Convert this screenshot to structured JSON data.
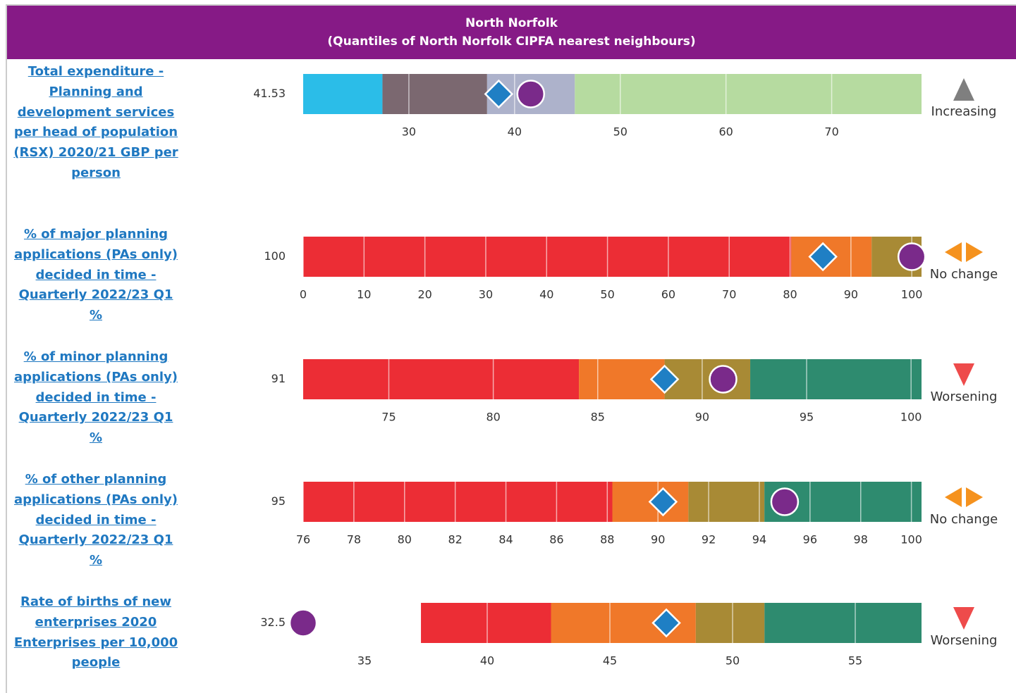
{
  "header": {
    "title": "North Norfolk",
    "subtitle": "(Quantiles of North Norfolk CIPFA nearest neighbours)"
  },
  "chart_data": [
    {
      "type": "bullet",
      "title": "Total expenditure - Planning and development services per head of population (RSX) 2020/21 GBP per person",
      "value": 41.53,
      "value_label": "41.53",
      "benchmark": 38.5,
      "xlim": [
        20,
        78.5
      ],
      "xticks": [
        30,
        40,
        50,
        60,
        70
      ],
      "bands": [
        {
          "from": 20,
          "to": 27.5,
          "color": "#2bbde8"
        },
        {
          "from": 27.5,
          "to": 37.4,
          "color": "#7b6870"
        },
        {
          "from": 37.4,
          "to": 45.7,
          "color": "#adb2cb"
        },
        {
          "from": 45.7,
          "to": 78.5,
          "color": "#b6dba0"
        }
      ],
      "trend": {
        "label": "Increasing",
        "direction": "up",
        "color": "#7f7f7f"
      }
    },
    {
      "type": "bullet",
      "title": "% of major planning applications (PAs only) decided in time - Quarterly 2022/23 Q1 %",
      "value": 100,
      "benchmark": 85.4,
      "xlim": [
        0,
        101.6
      ],
      "xticks": [
        0,
        10,
        20,
        30,
        40,
        50,
        60,
        70,
        80,
        90,
        100
      ],
      "bands": [
        {
          "from": 0,
          "to": 80.2,
          "color": "#ec2d35"
        },
        {
          "from": 80.2,
          "to": 93.4,
          "color": "#f07829"
        },
        {
          "from": 93.4,
          "to": 101.6,
          "color": "#a88a35"
        }
      ],
      "trend": {
        "label": "No change",
        "direction": "both",
        "color": "#f5921e"
      }
    },
    {
      "type": "bullet",
      "title": "% of minor planning applications (PAs only) decided in time - Quarterly 2022/23 Q1 %",
      "value": 91,
      "benchmark": 88.2,
      "xlim": [
        70.9,
        100.5
      ],
      "xticks": [
        75,
        80,
        85,
        90,
        95,
        100
      ],
      "bands": [
        {
          "from": 70.9,
          "to": 84.1,
          "color": "#ec2d35"
        },
        {
          "from": 84.1,
          "to": 88.2,
          "color": "#f07829"
        },
        {
          "from": 88.2,
          "to": 92.3,
          "color": "#a88a35"
        },
        {
          "from": 92.3,
          "to": 100.5,
          "color": "#2e8b6f"
        }
      ],
      "trend": {
        "label": "Worsening",
        "direction": "down",
        "color": "#ee4b4b"
      }
    },
    {
      "type": "bullet",
      "title": "% of other planning applications (PAs only) decided in time - Quarterly 2022/23 Q1 %",
      "value": 95,
      "benchmark": 90.2,
      "xlim": [
        76,
        100.4
      ],
      "xticks": [
        76,
        78,
        80,
        82,
        84,
        86,
        88,
        90,
        92,
        94,
        96,
        98,
        100
      ],
      "bands": [
        {
          "from": 76,
          "to": 88.2,
          "color": "#ec2d35"
        },
        {
          "from": 88.2,
          "to": 91.2,
          "color": "#f07829"
        },
        {
          "from": 91.2,
          "to": 94.2,
          "color": "#a88a35"
        },
        {
          "from": 94.2,
          "to": 100.4,
          "color": "#2e8b6f"
        }
      ],
      "trend": {
        "label": "No change",
        "direction": "both",
        "color": "#f5921e"
      }
    },
    {
      "type": "bullet",
      "title": "Rate of births of new enterprises 2020 Enterprises per 10,000 people",
      "value": 32.5,
      "benchmark": 47.3,
      "xlim": [
        32.5,
        57.7
      ],
      "xticks": [
        35,
        40,
        45,
        50,
        55
      ],
      "bands": [
        {
          "from": 37.3,
          "to": 42.6,
          "color": "#ec2d35"
        },
        {
          "from": 42.6,
          "to": 48.5,
          "color": "#f07829"
        },
        {
          "from": 48.5,
          "to": 51.3,
          "color": "#a88a35"
        },
        {
          "from": 51.3,
          "to": 57.7,
          "color": "#2e8b6f"
        }
      ],
      "trend": {
        "label": "Worsening",
        "direction": "down",
        "color": "#ee4b4b"
      }
    }
  ]
}
